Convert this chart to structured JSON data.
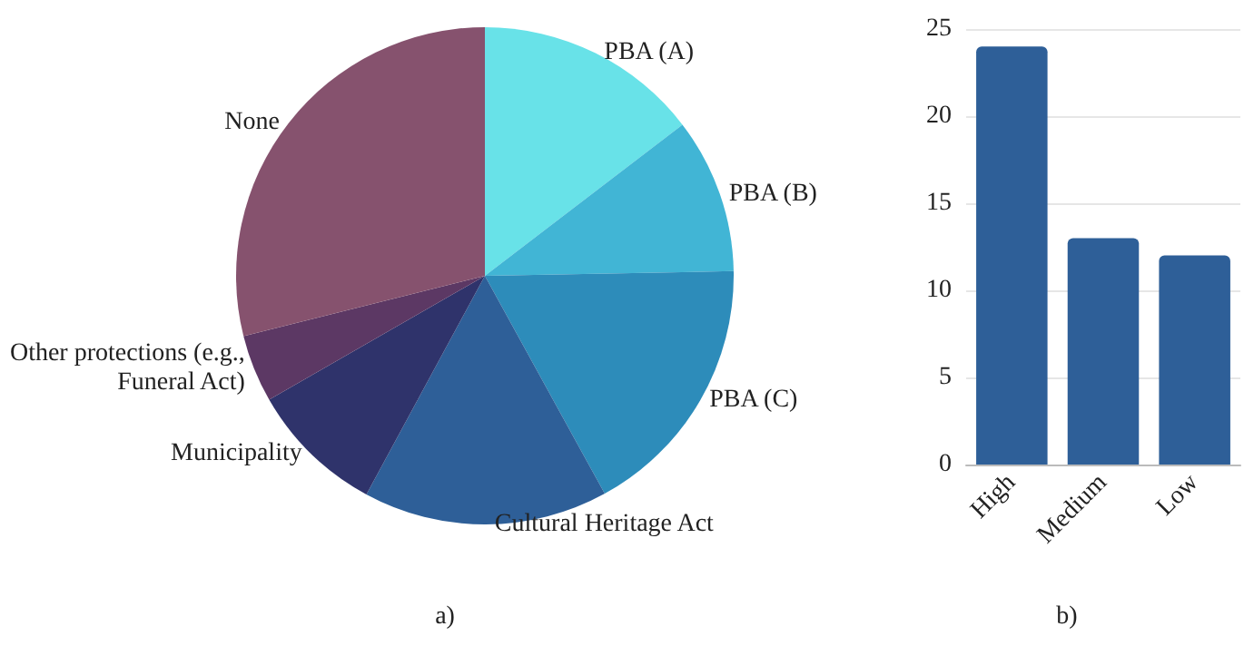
{
  "chart_data": [
    {
      "type": "pie",
      "categories": [
        "PBA (A)",
        "PBA (B)",
        "PBA (C)",
        "Cultural Heritage Act",
        "Municipality",
        "Other protections (e.g., Funeral Act)",
        "None"
      ],
      "values": [
        14.6,
        10.1,
        17.3,
        15.9,
        8.8,
        4.4,
        28.9
      ],
      "colors": [
        "#68e2e8",
        "#41b5d5",
        "#2d8cba",
        "#2e5f98",
        "#2f336b",
        "#5c3864",
        "#86526e"
      ],
      "annotations": [
        "a)"
      ]
    },
    {
      "type": "bar",
      "categories": [
        "High",
        "Medium",
        "Low"
      ],
      "values": [
        24,
        13,
        12
      ],
      "color": "#2e5f98",
      "ylim": [
        0,
        25
      ],
      "yticks": [
        0,
        5,
        10,
        15,
        20,
        25
      ],
      "grid": "y",
      "annotations": [
        "b)"
      ]
    }
  ]
}
